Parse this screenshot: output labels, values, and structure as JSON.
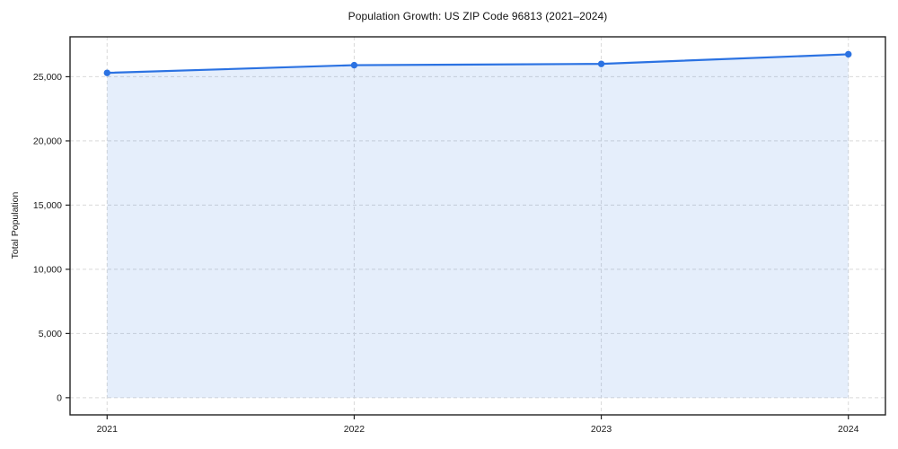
{
  "figure": {
    "background": "#ffffff"
  },
  "chart_data": {
    "type": "area",
    "title": "Population Growth: US ZIP Code 96813 (2021–2024)",
    "xlabel": "",
    "ylabel": "Total Population",
    "x": [
      2021,
      2022,
      2023,
      2024
    ],
    "series": [
      {
        "name": "Total Population",
        "values": [
          25300,
          25900,
          26000,
          26750
        ]
      }
    ],
    "baseline": 0,
    "xlim": [
      2020.85,
      2024.15
    ],
    "ylim": [
      -1338,
      28108
    ],
    "xticks": [
      2021,
      2022,
      2023,
      2024
    ],
    "xtick_labels": [
      "2021",
      "2022",
      "2023",
      "2024"
    ],
    "yticks": [
      0,
      5000,
      10000,
      15000,
      20000,
      25000
    ],
    "ytick_labels": [
      "0",
      "5,000",
      "10,000",
      "15,000",
      "20,000",
      "25,000"
    ],
    "grid": true,
    "grid_style": "dashed",
    "legend": false,
    "colors": {
      "line": "#2b72e2",
      "marker": "#2b72e2",
      "fill": "rgba(43,114,226,0.12)",
      "grid": "#d9d9d9",
      "spine": "#222222",
      "tick_text": "#1a1a1a"
    },
    "line_width": 2.2,
    "marker_radius": 3.7
  }
}
